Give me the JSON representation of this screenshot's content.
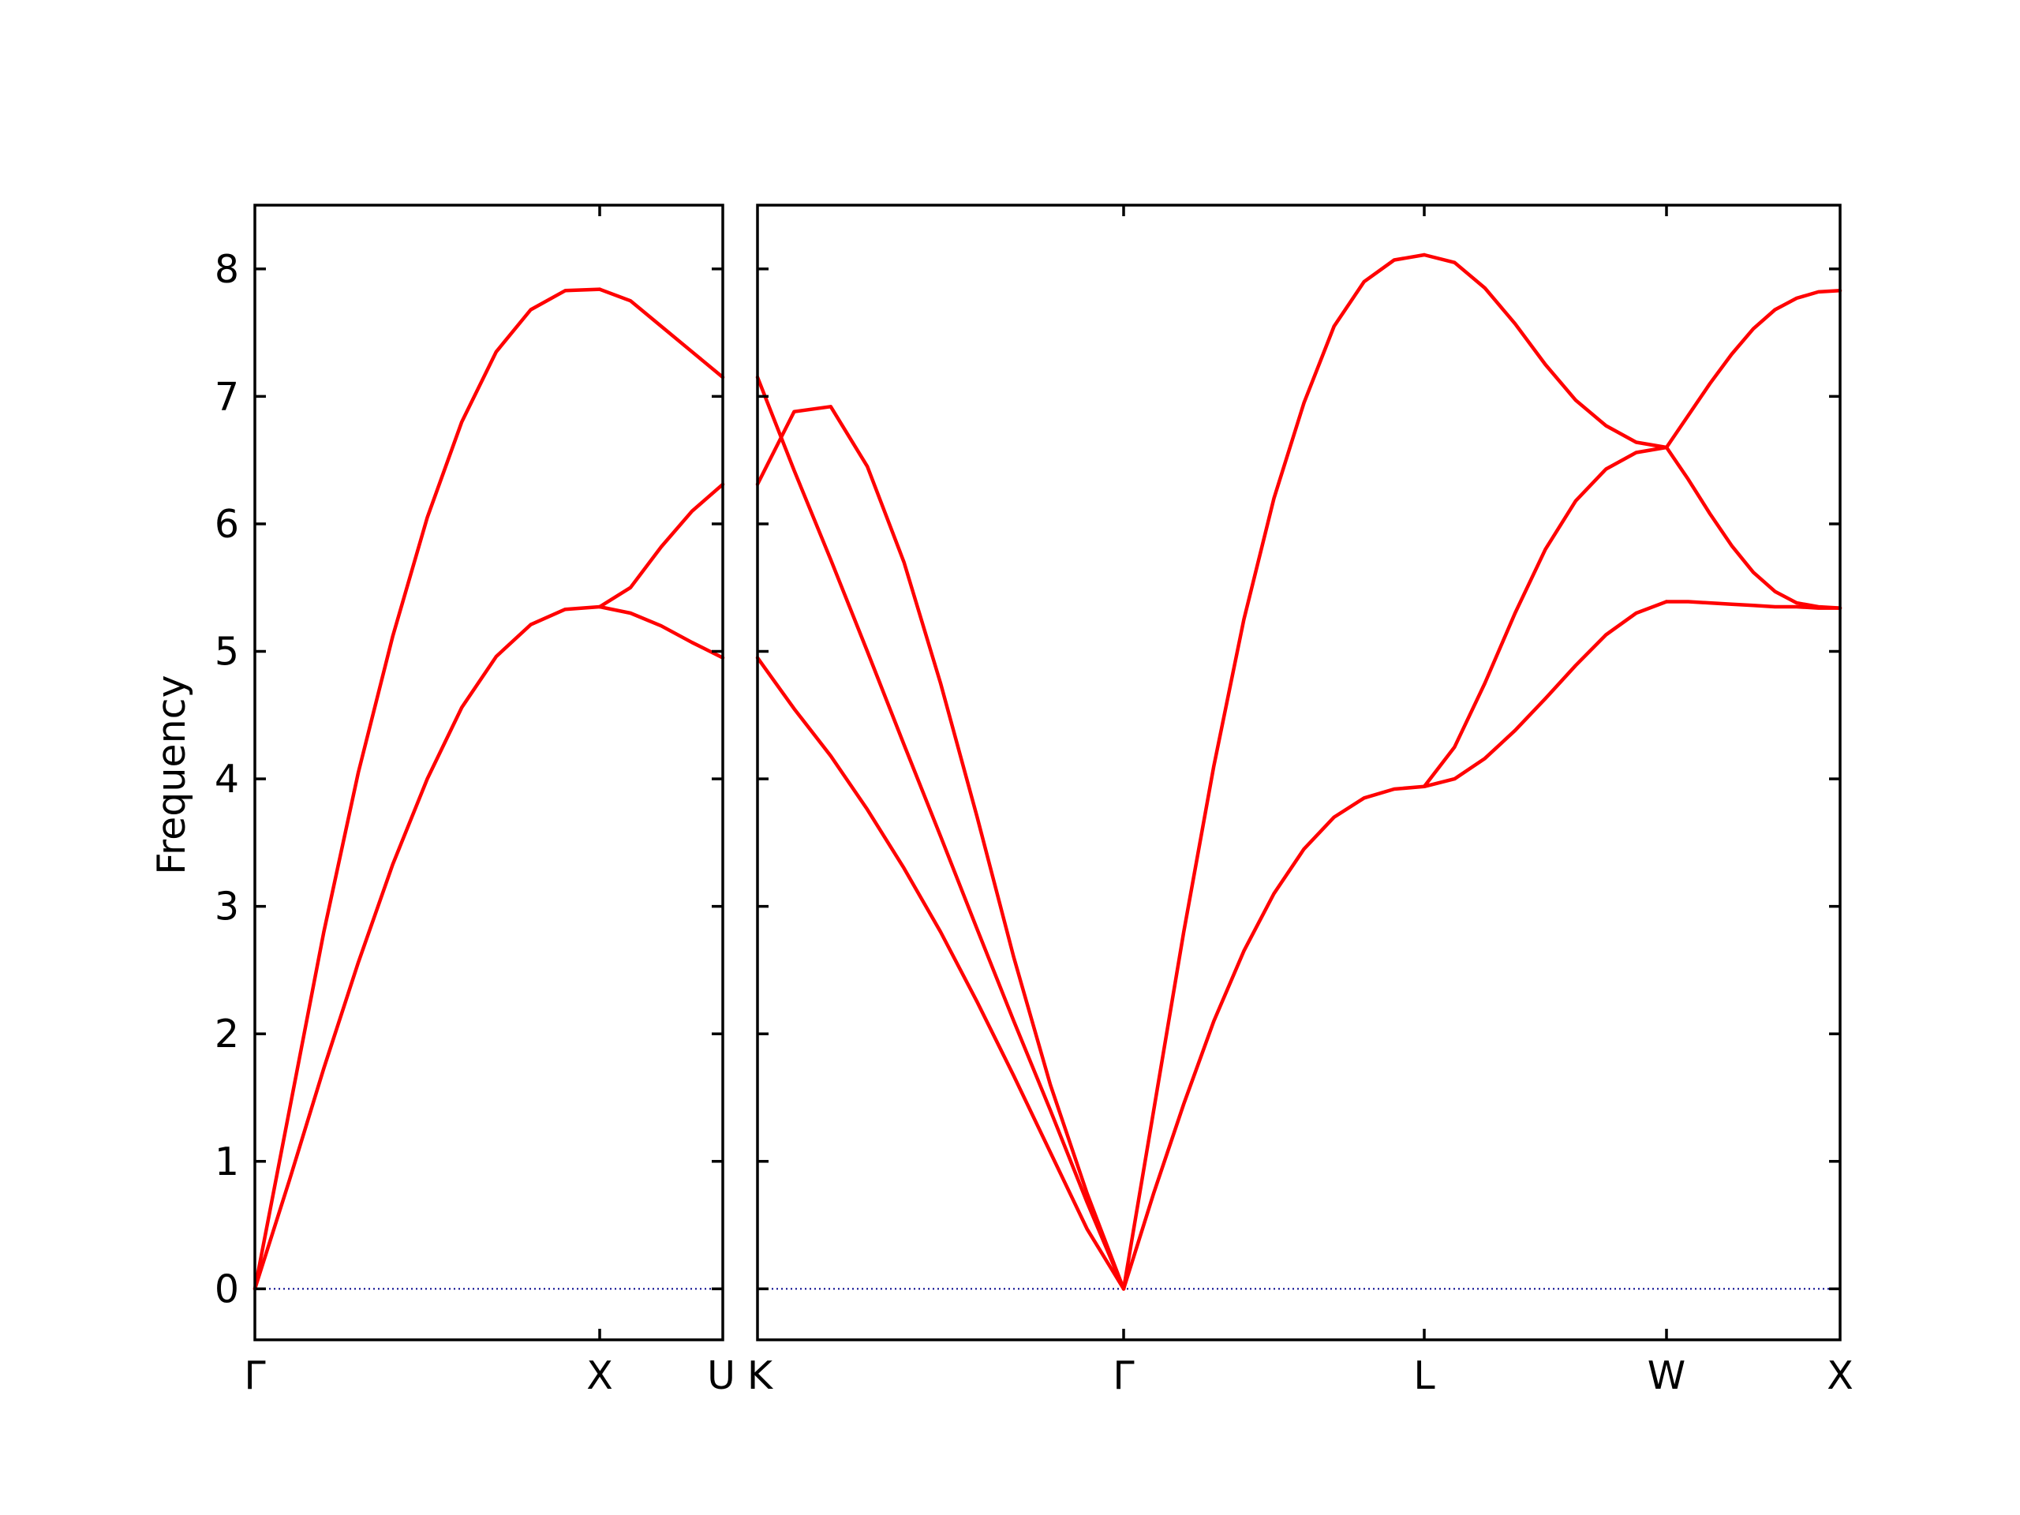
{
  "chart_data": {
    "type": "line",
    "ylabel": "Frequency",
    "ylim": [
      -0.4,
      8.5
    ],
    "y_ticks": [
      "0",
      "1",
      "2",
      "3",
      "4",
      "5",
      "6",
      "7",
      "8"
    ],
    "grid": false,
    "colors": {
      "bands": "#ff0000",
      "zero_line": "#00008b"
    },
    "panels": [
      {
        "id": "left",
        "path_labels": [
          "Γ",
          "X",
          "U"
        ],
        "segments": [
          {
            "from": "Γ",
            "to": "X",
            "t": [
              0,
              0.1,
              0.2,
              0.3,
              0.4,
              0.5,
              0.6,
              0.7,
              0.8,
              0.9,
              1.0
            ],
            "bands": [
              [
                0,
                0.85,
                1.73,
                2.56,
                3.33,
                4.0,
                4.56,
                4.96,
                5.21,
                5.33,
                5.35
              ],
              [
                0,
                1.4,
                2.8,
                4.05,
                5.12,
                6.05,
                6.8,
                7.35,
                7.68,
                7.83,
                7.84
              ]
            ]
          },
          {
            "from": "X",
            "to": "U",
            "t": [
              0,
              0.25,
              0.5,
              0.75,
              1.0
            ],
            "bands": [
              [
                5.35,
                5.3,
                5.2,
                5.07,
                4.95
              ],
              [
                5.35,
                5.5,
                5.82,
                6.1,
                6.31
              ],
              [
                7.84,
                7.75,
                7.55,
                7.35,
                7.15
              ]
            ]
          }
        ]
      },
      {
        "id": "right",
        "path_labels": [
          "K",
          "Γ",
          "L",
          "W",
          "X"
        ],
        "segments": [
          {
            "from": "K",
            "to": "Γ",
            "t": [
              0,
              0.1,
              0.2,
              0.3,
              0.4,
              0.5,
              0.6,
              0.7,
              0.8,
              0.9,
              1.0
            ],
            "bands": [
              [
                4.95,
                4.55,
                4.18,
                3.76,
                3.3,
                2.8,
                2.25,
                1.67,
                1.07,
                0.47,
                0
              ],
              [
                7.15,
                6.42,
                5.72,
                5.0,
                4.27,
                3.55,
                2.82,
                2.1,
                1.4,
                0.68,
                0
              ],
              [
                6.31,
                6.88,
                6.92,
                6.45,
                5.7,
                4.75,
                3.7,
                2.6,
                1.6,
                0.75,
                0
              ]
            ]
          },
          {
            "from": "Γ",
            "to": "L",
            "t": [
              0,
              0.1,
              0.2,
              0.3,
              0.4,
              0.5,
              0.6,
              0.7,
              0.8,
              0.9,
              1.0
            ],
            "bands": [
              [
                0,
                0.75,
                1.45,
                2.1,
                2.65,
                3.1,
                3.45,
                3.7,
                3.85,
                3.92,
                3.94
              ],
              [
                0,
                1.4,
                2.8,
                4.1,
                5.25,
                6.2,
                6.95,
                7.55,
                7.9,
                8.07,
                8.11
              ]
            ]
          },
          {
            "from": "L",
            "to": "W",
            "t": [
              0,
              0.125,
              0.25,
              0.375,
              0.5,
              0.625,
              0.75,
              0.875,
              1.0
            ],
            "bands": [
              [
                3.94,
                4.0,
                4.16,
                4.38,
                4.63,
                4.89,
                5.13,
                5.3,
                5.39
              ],
              [
                3.94,
                4.25,
                4.75,
                5.3,
                5.8,
                6.18,
                6.43,
                6.56,
                6.6
              ],
              [
                8.11,
                8.05,
                7.85,
                7.57,
                7.25,
                6.97,
                6.77,
                6.64,
                6.6
              ]
            ]
          },
          {
            "from": "W",
            "to": "X",
            "t": [
              0,
              0.125,
              0.25,
              0.375,
              0.5,
              0.625,
              0.75,
              0.875,
              1.0
            ],
            "bands": [
              [
                5.39,
                5.39,
                5.38,
                5.37,
                5.36,
                5.35,
                5.35,
                5.34,
                5.34
              ],
              [
                6.6,
                6.35,
                6.08,
                5.83,
                5.62,
                5.47,
                5.38,
                5.35,
                5.34
              ],
              [
                6.6,
                6.85,
                7.1,
                7.33,
                7.53,
                7.68,
                7.77,
                7.82,
                7.83
              ]
            ]
          }
        ]
      }
    ]
  }
}
